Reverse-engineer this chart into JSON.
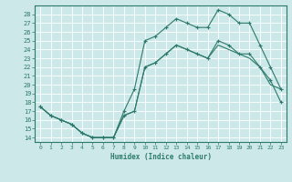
{
  "xlabel": "Humidex (Indice chaleur)",
  "bg_color": "#cce8e8",
  "line_color": "#2d7a6a",
  "grid_color": "#ffffff",
  "xlim": [
    -0.5,
    23.5
  ],
  "ylim": [
    13.5,
    29.0
  ],
  "yticks": [
    14,
    15,
    16,
    17,
    18,
    19,
    20,
    21,
    22,
    23,
    24,
    25,
    26,
    27,
    28
  ],
  "xticks": [
    0,
    1,
    2,
    3,
    4,
    5,
    6,
    7,
    8,
    9,
    10,
    11,
    12,
    13,
    14,
    15,
    16,
    17,
    18,
    19,
    20,
    21,
    22,
    23
  ],
  "line1_x": [
    0,
    1,
    2,
    3,
    4,
    5,
    6,
    7,
    8,
    9,
    10,
    11,
    12,
    13,
    14,
    15,
    16,
    17,
    18,
    19,
    20,
    21,
    22,
    23
  ],
  "line1_y": [
    17.5,
    16.5,
    16.0,
    15.5,
    14.5,
    14.0,
    14.0,
    14.0,
    17.0,
    19.5,
    25.0,
    25.5,
    26.5,
    27.5,
    27.0,
    26.5,
    26.5,
    28.5,
    28.0,
    27.0,
    27.0,
    24.5,
    22.0,
    19.5
  ],
  "line2_x": [
    0,
    1,
    2,
    3,
    4,
    5,
    6,
    7,
    8,
    9,
    10,
    11,
    12,
    13,
    14,
    15,
    16,
    17,
    18,
    19,
    20,
    21,
    22,
    23
  ],
  "line2_y": [
    17.5,
    16.5,
    16.0,
    15.5,
    14.5,
    14.0,
    14.0,
    14.0,
    16.5,
    17.0,
    22.0,
    22.5,
    23.5,
    24.5,
    24.0,
    23.5,
    23.0,
    25.0,
    24.5,
    23.5,
    23.5,
    22.0,
    20.5,
    18.0
  ],
  "line3_x": [
    0,
    1,
    2,
    3,
    4,
    5,
    6,
    7,
    8,
    9,
    10,
    11,
    12,
    13,
    14,
    15,
    16,
    17,
    18,
    19,
    20,
    21,
    22,
    23
  ],
  "line3_y": [
    17.5,
    16.5,
    16.0,
    15.5,
    14.5,
    14.0,
    14.0,
    14.0,
    16.5,
    17.0,
    22.0,
    22.5,
    23.5,
    24.5,
    24.0,
    23.5,
    23.0,
    24.5,
    24.0,
    23.5,
    23.0,
    22.0,
    20.0,
    19.5
  ]
}
